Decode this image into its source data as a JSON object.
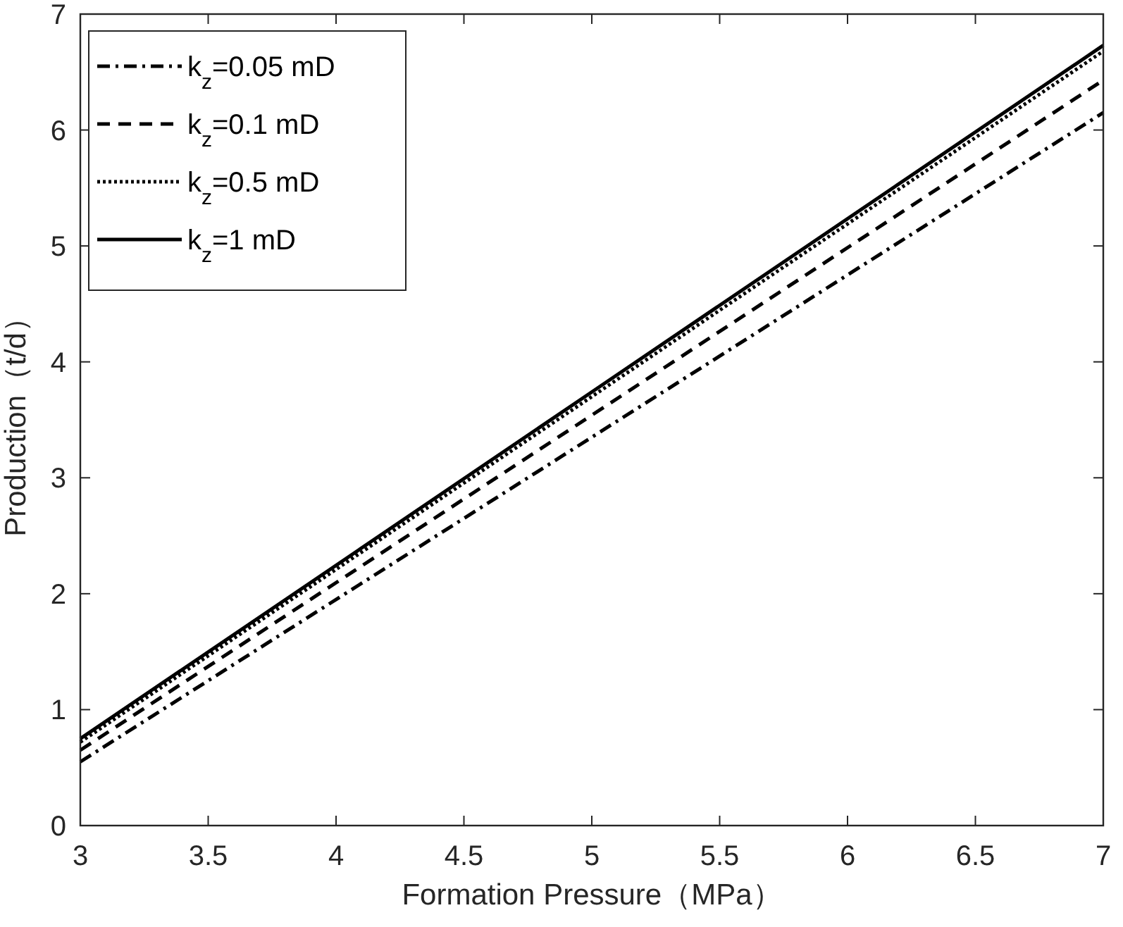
{
  "chart_data": {
    "type": "line",
    "xlabel": "Formation Pressure（MPa）",
    "ylabel": "Production（t/d）",
    "x": [
      3,
      5,
      7
    ],
    "xlim": [
      3,
      7
    ],
    "ylim": [
      0,
      7
    ],
    "xticks": [
      3,
      3.5,
      4,
      4.5,
      5,
      5.5,
      6,
      6.5,
      7
    ],
    "yticks": [
      0,
      1,
      2,
      3,
      4,
      5,
      6,
      7
    ],
    "legend": "top left",
    "grid": false,
    "marker": "none",
    "series": [
      {
        "name": "k$_{z}$=0.05 mD",
        "color": "#000000",
        "line_style": "dashdot",
        "values": [
          0.55,
          3.35,
          6.15
        ]
      },
      {
        "name": "k$_{z}$=0.1 mD",
        "color": "#000000",
        "line_style": "dashed",
        "values": [
          0.65,
          3.54,
          6.43
        ]
      },
      {
        "name": "k$_{z}$=0.5 mD",
        "color": "#000000",
        "line_style": "dotted",
        "values": [
          0.72,
          3.7,
          6.68
        ]
      },
      {
        "name": "k$_{z}$=1 mD",
        "color": "#000000",
        "line_style": "solid",
        "values": [
          0.75,
          3.74,
          6.73
        ]
      }
    ]
  }
}
